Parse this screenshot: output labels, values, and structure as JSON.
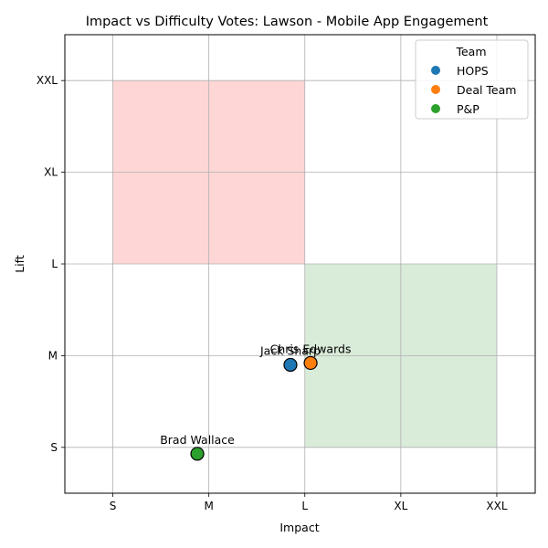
{
  "chart_data": {
    "type": "scatter",
    "title": "Impact vs Difficulty Votes: Lawson - Mobile App Engagement",
    "xlabel": "Impact",
    "ylabel": "Lift",
    "x_categories": [
      "S",
      "M",
      "L",
      "XL",
      "XXL"
    ],
    "y_categories": [
      "S",
      "M",
      "L",
      "XL",
      "XXL"
    ],
    "xlim": [
      -0.5,
      4.4
    ],
    "ylim": [
      -0.5,
      4.5
    ],
    "grid": true,
    "regions": [
      {
        "x_range": [
          0,
          2
        ],
        "y_range": [
          2,
          4
        ],
        "color": "#ffd6d6"
      },
      {
        "x_range": [
          2,
          4
        ],
        "y_range": [
          0,
          2
        ],
        "color": "#d9ebd9"
      }
    ],
    "legend": {
      "title": "Team",
      "position": "top-right"
    },
    "series": [
      {
        "name": "HOPS",
        "color": "#1f77b4",
        "points": [
          {
            "x": 1.85,
            "y": 0.9,
            "label": "Jack Sharp"
          }
        ]
      },
      {
        "name": "Deal Team",
        "color": "#ff7f0e",
        "points": [
          {
            "x": 2.06,
            "y": 0.92,
            "label": "Chris Edwards"
          }
        ]
      },
      {
        "name": "P&P",
        "color": "#2ca02c",
        "points": [
          {
            "x": 0.88,
            "y": -0.07,
            "label": "Brad Wallace"
          }
        ]
      }
    ]
  }
}
